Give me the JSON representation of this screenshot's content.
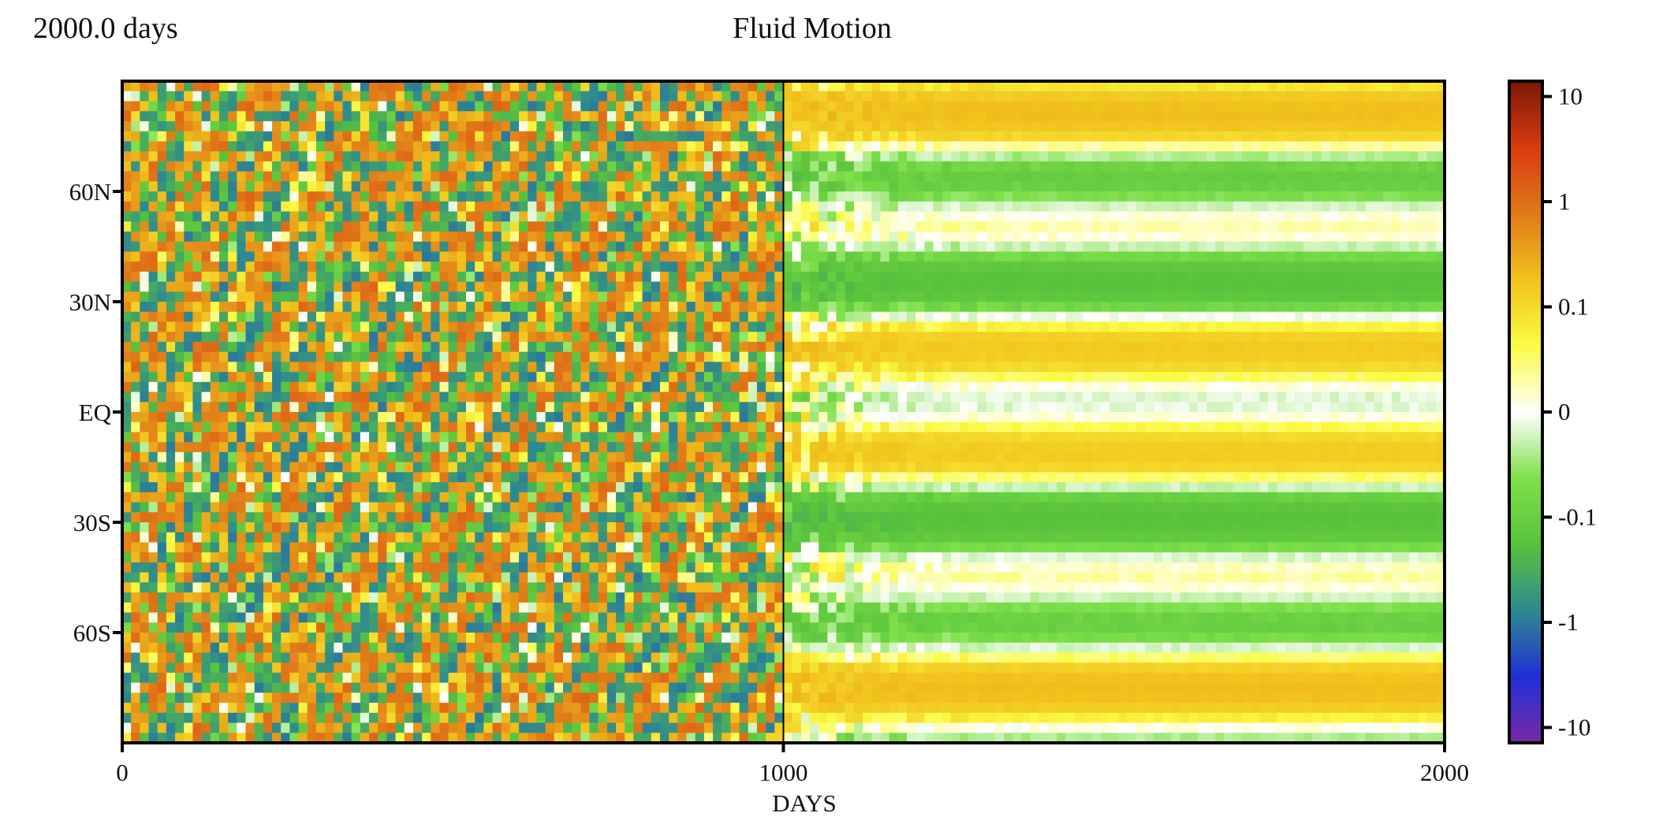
{
  "header": {
    "time_label": "2000.0 days",
    "title": "Fluid Motion"
  },
  "chart_data": {
    "type": "heatmap",
    "title": "Fluid Motion",
    "xlabel": "DAYS",
    "ylabel": "",
    "xlim": [
      0,
      2000
    ],
    "x_ticks": [
      {
        "value": 0,
        "label": "0"
      },
      {
        "value": 1000,
        "label": "1000"
      },
      {
        "value": 2000,
        "label": "2000"
      }
    ],
    "y_ticks": [
      {
        "value": 60,
        "label": "60N"
      },
      {
        "value": 30,
        "label": "30N"
      },
      {
        "value": 0,
        "label": "EQ"
      },
      {
        "value": -30,
        "label": "30S"
      },
      {
        "value": -60,
        "label": "60S"
      }
    ],
    "ylim": [
      -90,
      90
    ],
    "divider_x": 1000,
    "colorbar": {
      "scale": "symmetric-log",
      "range": [
        -14,
        14
      ],
      "ticks": [
        {
          "value": 10,
          "label": "10"
        },
        {
          "value": 1,
          "label": "1"
        },
        {
          "value": 0.1,
          "label": "0.1"
        },
        {
          "value": 0,
          "label": "0"
        },
        {
          "value": -0.1,
          "label": "-0.1"
        },
        {
          "value": -1,
          "label": "-1"
        },
        {
          "value": -10,
          "label": "-10"
        }
      ],
      "colors": [
        "#7a2aa6",
        "#1f2fd6",
        "#2f8a8e",
        "#58c23c",
        "#7fe04a",
        "#ffffff",
        "#fbfb44",
        "#f0c21c",
        "#e07a18",
        "#d83a10",
        "#7a1806"
      ]
    },
    "regions": [
      {
        "x_range": [
          0,
          1000
        ],
        "description_level": "turbulent",
        "amplitude": 1.0
      },
      {
        "x_range": [
          1000,
          2000
        ],
        "description_level": "smoothed banded",
        "amplitude": 0.12
      }
    ]
  }
}
